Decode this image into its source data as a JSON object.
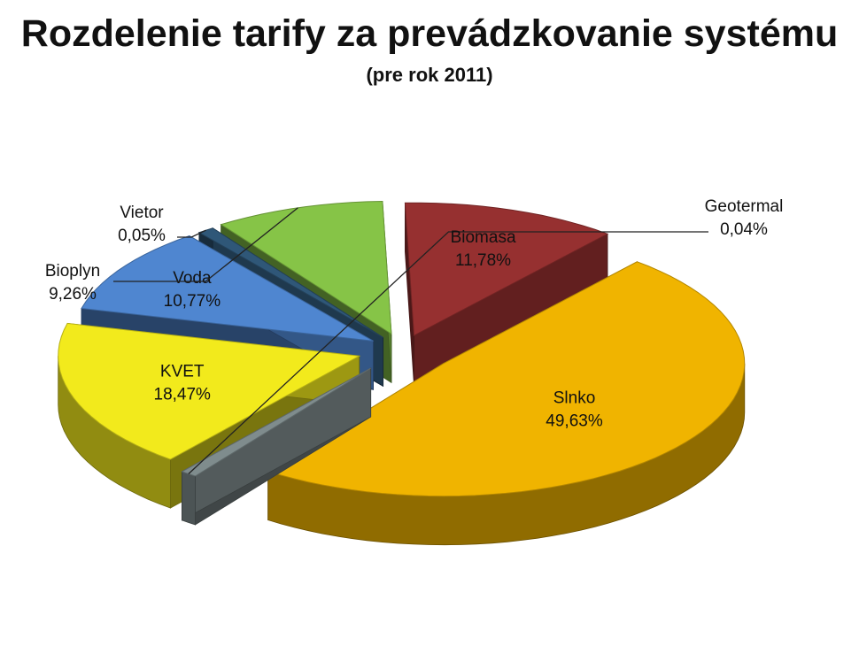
{
  "chart_data": {
    "type": "pie",
    "title": "Rozdelenie tarify za prevádzkovanie systému",
    "subtitle": "(pre rok 2011)",
    "slices": [
      {
        "name": "Slnko",
        "label": "49,63%",
        "value": 49.63,
        "color": "#f0b400",
        "exploded": true,
        "external_label": false
      },
      {
        "name": "Geotermal",
        "label": "0,04%",
        "value": 0.04,
        "color": "#7f8c8d",
        "exploded": true,
        "external_label": true
      },
      {
        "name": "KVET",
        "label": "18,47%",
        "value": 18.47,
        "color": "#f2ea1c",
        "exploded": true,
        "external_label": false
      },
      {
        "name": "Voda",
        "label": "10,77%",
        "value": 10.77,
        "color": "#4f86d0",
        "exploded": true,
        "external_label": false
      },
      {
        "name": "Vietor",
        "label": "0,05%",
        "value": 0.05,
        "color": "#2f5778",
        "exploded": true,
        "external_label": true
      },
      {
        "name": "Bioplyn",
        "label": "9,26%",
        "value": 9.26,
        "color": "#86c447",
        "exploded": true,
        "external_label": true
      },
      {
        "name": "Biomasa",
        "label": "11,78%",
        "value": 11.78,
        "color": "#963030",
        "exploded": true,
        "external_label": false
      }
    ],
    "legend": "none",
    "style": "3d-exploded"
  }
}
